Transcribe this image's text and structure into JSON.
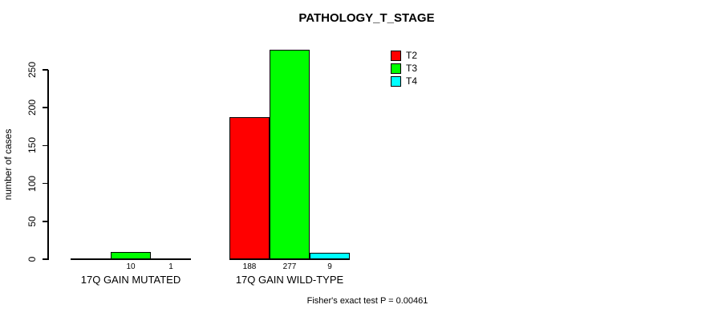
{
  "chart_data": {
    "type": "bar",
    "title": "PATHOLOGY_T_STAGE",
    "ylabel": "number of cases",
    "xlabel": "",
    "categories": [
      "17Q GAIN MUTATED",
      "17Q GAIN WILD-TYPE"
    ],
    "series": [
      {
        "name": "T2",
        "color": "#ff0000",
        "values": [
          0,
          188
        ]
      },
      {
        "name": "T3",
        "color": "#00ff00",
        "values": [
          10,
          277
        ]
      },
      {
        "name": "T4",
        "color": "#00ffff",
        "values": [
          1,
          9
        ]
      }
    ],
    "bar_value_labels": [
      [
        "",
        "10",
        "1"
      ],
      [
        "188",
        "277",
        "9"
      ]
    ],
    "yticks": [
      0,
      50,
      100,
      150,
      200,
      250
    ],
    "ylim": [
      0,
      280
    ],
    "grid": false,
    "legend_position": "top-right",
    "annotation": "Fisher's exact test P = 0.00461"
  }
}
